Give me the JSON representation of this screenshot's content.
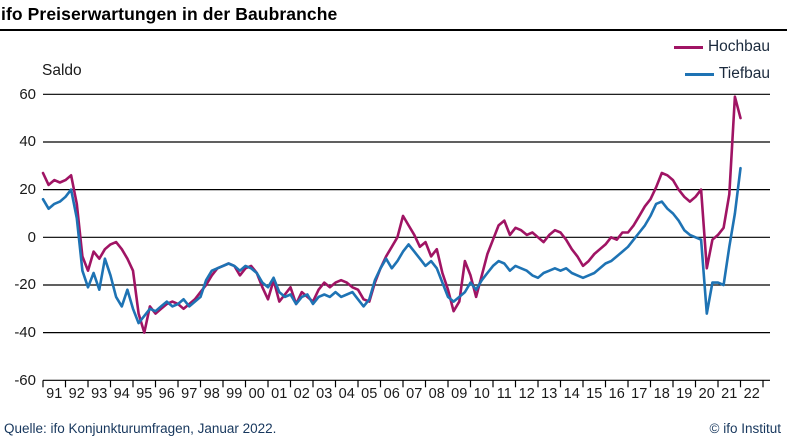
{
  "header": {
    "title": "ifo Preiserwartungen in der Baubranche"
  },
  "footer": {
    "source": "Quelle: ifo Konjunkturumfragen, Januar 2022.",
    "copyright": "© ifo Institut"
  },
  "colors": {
    "hochbau": "#a01464",
    "tiefbau": "#1e73b4",
    "grid": "#000000",
    "ink": "#1a1a1a",
    "footer_ink": "#17375d"
  },
  "chart_data": {
    "type": "line",
    "title": "ifo Preiserwartungen in der Baubranche",
    "ylabel": "Saldo",
    "xlabel": "",
    "ylim": [
      -60,
      60
    ],
    "y_ticks": [
      60,
      40,
      20,
      0,
      -20,
      -40,
      -60
    ],
    "grid": "horizontal-solid",
    "legend_position": "top-right",
    "x_start_year": 1991,
    "x_points_per_year": 4,
    "x_tick_labels": [
      "91",
      "92",
      "93",
      "94",
      "95",
      "96",
      "97",
      "98",
      "99",
      "00",
      "01",
      "02",
      "03",
      "04",
      "05",
      "06",
      "07",
      "08",
      "09",
      "10",
      "11",
      "12",
      "13",
      "14",
      "15",
      "16",
      "17",
      "18",
      "19",
      "20",
      "21",
      "22"
    ],
    "series": [
      {
        "name": "Hochbau",
        "color": "#a01464",
        "values": [
          27,
          22,
          24,
          23,
          24,
          26,
          14,
          -8,
          -14,
          -6,
          -9,
          -5,
          -3,
          -2,
          -5,
          -9,
          -14,
          -32,
          -40,
          -29,
          -32,
          -30,
          -28,
          -27,
          -28,
          -30,
          -28,
          -26,
          -23,
          -20,
          -16,
          -13,
          -12,
          -11,
          -12,
          -16,
          -13,
          -12,
          -15,
          -21,
          -26,
          -18,
          -27,
          -24,
          -21,
          -28,
          -23,
          -25,
          -27,
          -22,
          -19,
          -21,
          -19,
          -18,
          -19,
          -21,
          -22,
          -26,
          -27,
          -19,
          -13,
          -8,
          -4,
          0,
          9,
          5,
          1,
          -4,
          -2,
          -8,
          -5,
          -15,
          -22,
          -31,
          -27,
          -10,
          -16,
          -25,
          -16,
          -7,
          -1,
          5,
          7,
          1,
          4,
          3,
          1,
          2,
          0,
          -2,
          1,
          3,
          2,
          -1,
          -5,
          -8,
          -12,
          -10,
          -7,
          -5,
          -3,
          0,
          -1,
          2,
          2,
          5,
          9,
          13,
          16,
          21,
          27,
          26,
          24,
          20,
          17,
          15,
          17,
          20,
          -13,
          -1,
          1,
          4,
          18,
          59,
          50
        ]
      },
      {
        "name": "Tiefbau",
        "color": "#1e73b4",
        "values": [
          16,
          12,
          14,
          15,
          17,
          20,
          8,
          -14,
          -21,
          -15,
          -22,
          -9,
          -16,
          -25,
          -29,
          -22,
          -30,
          -36,
          -33,
          -30,
          -31,
          -29,
          -27,
          -29,
          -28,
          -26,
          -29,
          -27,
          -25,
          -18,
          -14,
          -13,
          -12,
          -11,
          -12,
          -14,
          -12,
          -13,
          -15,
          -19,
          -21,
          -17,
          -23,
          -25,
          -24,
          -28,
          -25,
          -24,
          -28,
          -25,
          -24,
          -25,
          -23,
          -25,
          -24,
          -23,
          -26,
          -29,
          -26,
          -18,
          -13,
          -9,
          -13,
          -10,
          -6,
          -3,
          -6,
          -9,
          -12,
          -10,
          -13,
          -19,
          -25,
          -27,
          -25,
          -23,
          -19,
          -22,
          -18,
          -15,
          -12,
          -10,
          -11,
          -14,
          -12,
          -13,
          -14,
          -16,
          -17,
          -15,
          -14,
          -13,
          -14,
          -13,
          -15,
          -16,
          -17,
          -16,
          -15,
          -13,
          -11,
          -10,
          -8,
          -6,
          -4,
          -1,
          2,
          5,
          9,
          14,
          15,
          12,
          10,
          7,
          3,
          1,
          0,
          -1,
          -32,
          -19,
          -19,
          -20,
          -4,
          10,
          29
        ]
      }
    ]
  }
}
